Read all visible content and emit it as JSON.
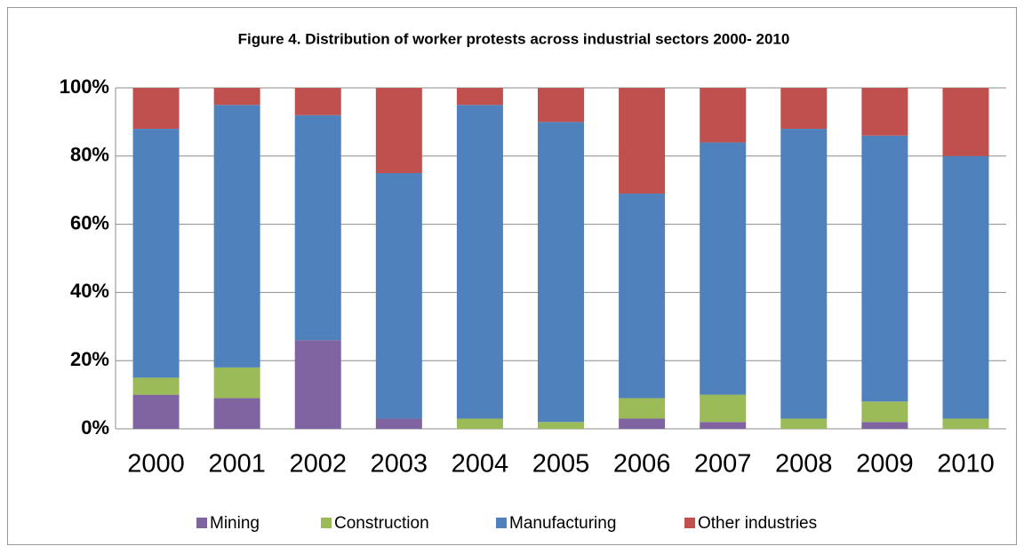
{
  "chart_data": {
    "type": "stacked_bar",
    "title": "Figure 4. Distribution of worker protests across industrial sectors 2000- 2010",
    "categories": [
      "2000",
      "2001",
      "2002",
      "2003",
      "2004",
      "2005",
      "2006",
      "2007",
      "2008",
      "2009",
      "2010"
    ],
    "series": [
      {
        "name": "Mining",
        "color": "#8064a2",
        "values": [
          10,
          9,
          26,
          3,
          0,
          0,
          3,
          2,
          0,
          2,
          0
        ]
      },
      {
        "name": "Construction",
        "color": "#9bbb59",
        "values": [
          5,
          9,
          0,
          0,
          3,
          2,
          6,
          8,
          3,
          6,
          3
        ]
      },
      {
        "name": "Manufacturing",
        "color": "#4f81bd",
        "values": [
          73,
          77,
          66,
          72,
          92,
          88,
          60,
          74,
          85,
          78,
          77
        ]
      },
      {
        "name": "Other industries",
        "color": "#c0504d",
        "values": [
          12,
          5,
          8,
          25,
          5,
          10,
          31,
          16,
          12,
          14,
          20
        ]
      }
    ],
    "ylim": [
      0,
      100
    ],
    "yticks": [
      {
        "value": 0,
        "label": "0%"
      },
      {
        "value": 20,
        "label": "20%"
      },
      {
        "value": 40,
        "label": "40%"
      },
      {
        "value": 60,
        "label": "60%"
      },
      {
        "value": 80,
        "label": "80%"
      },
      {
        "value": 100,
        "label": "100%"
      }
    ],
    "grid": true,
    "legend": "bottom"
  }
}
